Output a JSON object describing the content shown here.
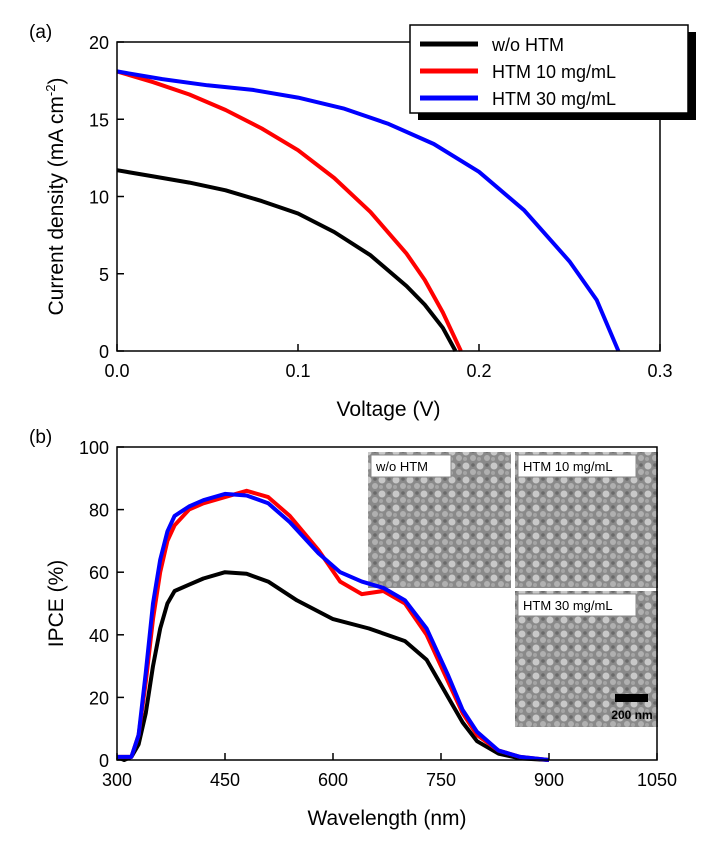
{
  "chart_data": [
    {
      "type": "line",
      "panel": "(a)",
      "xlabel": "Voltage (V)",
      "ylabel": "Current density (mA cm",
      "ylabel_sup": "-2",
      "ylabel_end": ")",
      "xlim": [
        0,
        0.3
      ],
      "ylim": [
        0,
        20
      ],
      "xticks": [
        {
          "value": 0,
          "label": "0.0"
        },
        0.1,
        0.2,
        0.3
      ],
      "yticks": [
        0,
        5,
        10,
        15,
        20
      ],
      "legend": "upper right",
      "series": [
        {
          "name": "w/o HTM",
          "color": "#000000",
          "x": [
            0,
            0.02,
            0.04,
            0.06,
            0.08,
            0.1,
            0.12,
            0.14,
            0.16,
            0.17,
            0.18,
            0.187
          ],
          "values": [
            11.7,
            11.3,
            10.9,
            10.4,
            9.7,
            8.9,
            7.7,
            6.2,
            4.2,
            3.0,
            1.5,
            0
          ]
        },
        {
          "name": "HTM 10 mg/mL",
          "color": "#ff0000",
          "x": [
            0,
            0.02,
            0.04,
            0.06,
            0.08,
            0.1,
            0.12,
            0.14,
            0.16,
            0.17,
            0.18,
            0.19
          ],
          "values": [
            18.1,
            17.4,
            16.6,
            15.6,
            14.4,
            13.0,
            11.2,
            9.0,
            6.3,
            4.6,
            2.5,
            0
          ]
        },
        {
          "name": "HTM 30 mg/mL",
          "color": "#0000ff",
          "x": [
            0,
            0.025,
            0.05,
            0.075,
            0.1,
            0.125,
            0.15,
            0.175,
            0.2,
            0.225,
            0.25,
            0.265,
            0.277
          ],
          "values": [
            18.1,
            17.6,
            17.2,
            16.9,
            16.4,
            15.7,
            14.7,
            13.4,
            11.6,
            9.1,
            5.8,
            3.3,
            0
          ]
        }
      ]
    },
    {
      "type": "line",
      "panel": "(b)",
      "xlabel": "Wavelength (nm)",
      "ylabel": "IPCE (%)",
      "xlim": [
        300,
        1050
      ],
      "ylim": [
        0,
        100
      ],
      "xticks": [
        300,
        450,
        600,
        750,
        900,
        1050
      ],
      "yticks": [
        0,
        20,
        40,
        60,
        80,
        100
      ],
      "insets": [
        {
          "label": "w/o HTM"
        },
        {
          "label": "HTM 10 mg/mL"
        },
        {
          "label": "HTM 30 mg/mL"
        }
      ],
      "scale_bar": "200 nm",
      "series": [
        {
          "name": "w/o HTM",
          "color": "#000000",
          "x": [
            300,
            310,
            320,
            330,
            340,
            350,
            360,
            370,
            380,
            400,
            420,
            450,
            480,
            510,
            550,
            600,
            650,
            700,
            730,
            760,
            780,
            800,
            830,
            860,
            900
          ],
          "values": [
            1,
            0,
            1,
            5,
            15,
            30,
            42,
            50,
            54,
            56,
            58,
            60,
            59.5,
            57,
            51,
            45,
            42,
            38,
            32,
            20,
            12,
            6,
            2,
            0.5,
            0
          ]
        },
        {
          "name": "HTM 10 mg/mL",
          "color": "#ff0000",
          "x": [
            300,
            320,
            330,
            340,
            350,
            360,
            370,
            380,
            400,
            420,
            450,
            480,
            510,
            540,
            580,
            610,
            640,
            670,
            700,
            730,
            760,
            780,
            800,
            830,
            860,
            900
          ],
          "values": [
            1,
            1,
            8,
            25,
            45,
            60,
            70,
            75,
            80,
            82,
            84,
            86,
            84,
            78,
            67,
            57,
            53,
            54,
            50,
            40,
            25,
            15,
            8,
            3,
            1,
            0
          ]
        },
        {
          "name": "HTM 30 mg/mL",
          "color": "#0000ff",
          "x": [
            300,
            320,
            330,
            340,
            350,
            360,
            370,
            380,
            400,
            420,
            450,
            480,
            510,
            540,
            580,
            610,
            640,
            670,
            700,
            730,
            760,
            780,
            800,
            830,
            860,
            900
          ],
          "values": [
            1,
            1,
            8,
            28,
            50,
            64,
            73,
            78,
            81,
            83,
            85,
            84.5,
            82,
            76,
            66,
            60,
            57,
            55,
            51,
            42,
            27,
            16,
            9,
            3,
            1,
            0
          ]
        }
      ]
    }
  ]
}
